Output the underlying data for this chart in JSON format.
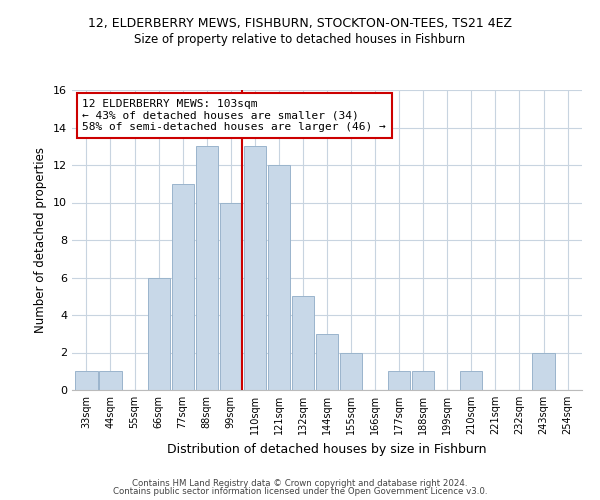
{
  "title_line1": "12, ELDERBERRY MEWS, FISHBURN, STOCKTON-ON-TEES, TS21 4EZ",
  "title_line2": "Size of property relative to detached houses in Fishburn",
  "xlabel": "Distribution of detached houses by size in Fishburn",
  "ylabel": "Number of detached properties",
  "bin_labels": [
    "33sqm",
    "44sqm",
    "55sqm",
    "66sqm",
    "77sqm",
    "88sqm",
    "99sqm",
    "110sqm",
    "121sqm",
    "132sqm",
    "144sqm",
    "155sqm",
    "166sqm",
    "177sqm",
    "188sqm",
    "199sqm",
    "210sqm",
    "221sqm",
    "232sqm",
    "243sqm",
    "254sqm"
  ],
  "bar_values": [
    1,
    1,
    0,
    6,
    11,
    13,
    10,
    13,
    12,
    5,
    3,
    2,
    0,
    1,
    1,
    0,
    1,
    0,
    0,
    2,
    0
  ],
  "bar_color": "#c8d8e8",
  "bar_edge_color": "#9ab4cc",
  "marker_bin_index": 6,
  "annotation_title": "12 ELDERBERRY MEWS: 103sqm",
  "annotation_line2": "← 43% of detached houses are smaller (34)",
  "annotation_line3": "58% of semi-detached houses are larger (46) →",
  "annotation_box_color": "#ffffff",
  "annotation_box_edge_color": "#cc0000",
  "vline_color": "#cc0000",
  "ylim": [
    0,
    16
  ],
  "yticks": [
    0,
    2,
    4,
    6,
    8,
    10,
    12,
    14,
    16
  ],
  "footer_line1": "Contains HM Land Registry data © Crown copyright and database right 2024.",
  "footer_line2": "Contains public sector information licensed under the Open Government Licence v3.0.",
  "background_color": "#ffffff",
  "grid_color": "#c8d4e0"
}
